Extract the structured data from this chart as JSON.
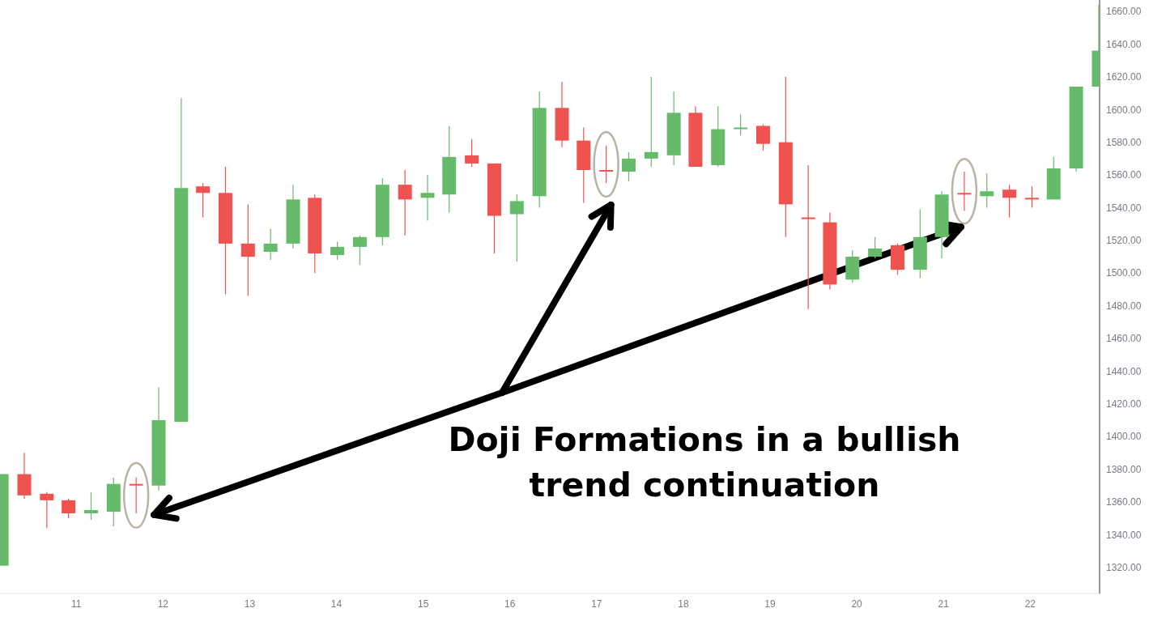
{
  "chart_data": {
    "type": "candlestick",
    "annotations": [
      "Doji Formations in a bullish trend continuation"
    ],
    "x": [
      10.14,
      10.4,
      10.66,
      10.91,
      11.17,
      11.43,
      11.69,
      11.95,
      12.21,
      12.46,
      12.72,
      12.98,
      13.24,
      13.5,
      13.75,
      14.01,
      14.27,
      14.53,
      14.79,
      15.05,
      15.3,
      15.56,
      15.82,
      16.08,
      16.34,
      16.6,
      16.85,
      17.11,
      17.37,
      17.63,
      17.89,
      18.14,
      18.4,
      18.66,
      18.92,
      19.18,
      19.44,
      19.69,
      19.95,
      20.21,
      20.47,
      20.73,
      20.98,
      21.24,
      21.5,
      21.76,
      22.02,
      22.27,
      22.53,
      22.79
    ],
    "ohlc": [
      [
        1321,
        1377,
        1321,
        1377
      ],
      [
        1377,
        1390,
        1362,
        1364
      ],
      [
        1365,
        1366,
        1344,
        1361
      ],
      [
        1361,
        1362,
        1350,
        1353
      ],
      [
        1353,
        1366,
        1349,
        1355
      ],
      [
        1354,
        1375,
        1345,
        1371
      ],
      [
        1371,
        1375,
        1353,
        1370
      ],
      [
        1370,
        1430,
        1367,
        1410
      ],
      [
        1409,
        1607,
        1409,
        1552
      ],
      [
        1553,
        1555,
        1534,
        1549
      ],
      [
        1549,
        1565,
        1487,
        1518
      ],
      [
        1518,
        1542,
        1486,
        1510
      ],
      [
        1513,
        1527,
        1508,
        1518
      ],
      [
        1518,
        1554,
        1515,
        1545
      ],
      [
        1546,
        1548,
        1500,
        1512
      ],
      [
        1511,
        1519,
        1508,
        1516
      ],
      [
        1516,
        1523,
        1505,
        1522
      ],
      [
        1522,
        1558,
        1517,
        1554
      ],
      [
        1554,
        1563,
        1523,
        1545
      ],
      [
        1546,
        1560,
        1532,
        1549
      ],
      [
        1548,
        1590,
        1537,
        1571
      ],
      [
        1572,
        1582,
        1565,
        1567
      ],
      [
        1567,
        1567,
        1512,
        1535
      ],
      [
        1536,
        1548,
        1507,
        1544
      ],
      [
        1547,
        1611,
        1540,
        1601
      ],
      [
        1601,
        1617,
        1577,
        1581
      ],
      [
        1581,
        1589,
        1543,
        1563
      ],
      [
        1563,
        1578,
        1555,
        1562
      ],
      [
        1562,
        1574,
        1556,
        1570
      ],
      [
        1570,
        1620,
        1565,
        1574
      ],
      [
        1572,
        1611,
        1566,
        1598
      ],
      [
        1598,
        1602,
        1565,
        1565
      ],
      [
        1566,
        1602,
        1565,
        1588
      ],
      [
        1588,
        1597,
        1584,
        1589
      ],
      [
        1590,
        1591,
        1575,
        1579
      ],
      [
        1580,
        1620,
        1522,
        1542
      ],
      [
        1534,
        1566,
        1478,
        1533
      ],
      [
        1531,
        1537,
        1490,
        1493
      ],
      [
        1496,
        1514,
        1494,
        1510
      ],
      [
        1510,
        1522,
        1509,
        1515
      ],
      [
        1517,
        1518,
        1499,
        1502
      ],
      [
        1502,
        1539,
        1497,
        1522
      ],
      [
        1522,
        1550,
        1509,
        1548
      ],
      [
        1549,
        1562,
        1538,
        1548
      ],
      [
        1547,
        1561,
        1540,
        1550
      ],
      [
        1551,
        1554,
        1534,
        1546
      ],
      [
        1546,
        1553,
        1540,
        1545
      ],
      [
        1545,
        1571,
        1545,
        1564
      ],
      [
        1564,
        1614,
        1562,
        1614
      ],
      [
        1614,
        1664,
        1614,
        1636
      ]
    ],
    "colors": [
      "#66bb6a",
      "#ef5350",
      "#ef5350",
      "#ef5350",
      "#66bb6a",
      "#66bb6a",
      "#ef5350",
      "#66bb6a",
      "#66bb6a",
      "#ef5350",
      "#ef5350",
      "#ef5350",
      "#66bb6a",
      "#66bb6a",
      "#ef5350",
      "#66bb6a",
      "#66bb6a",
      "#66bb6a",
      "#ef5350",
      "#66bb6a",
      "#66bb6a",
      "#ef5350",
      "#ef5350",
      "#66bb6a",
      "#66bb6a",
      "#ef5350",
      "#ef5350",
      "#ef5350",
      "#66bb6a",
      "#66bb6a",
      "#66bb6a",
      "#ef5350",
      "#66bb6a",
      "#66bb6a",
      "#ef5350",
      "#ef5350",
      "#ef5350",
      "#ef5350",
      "#66bb6a",
      "#66bb6a",
      "#ef5350",
      "#66bb6a",
      "#66bb6a",
      "#ef5350",
      "#66bb6a",
      "#ef5350",
      "#ef5350",
      "#66bb6a",
      "#66bb6a",
      "#66bb6a"
    ],
    "xlim": [
      10.12,
      22.8
    ],
    "xticks": [
      11,
      12,
      13,
      14,
      15,
      16,
      17,
      18,
      19,
      20,
      21,
      22
    ],
    "ylim": [
      1304,
      1667
    ],
    "yticks": [
      {
        "value": 1320,
        "label": "1320.00"
      },
      {
        "value": 1340,
        "label": "1340.00"
      },
      {
        "value": 1360,
        "label": "1360.00"
      },
      {
        "value": 1380,
        "label": "1380.00"
      },
      {
        "value": 1400,
        "label": "1400.00"
      },
      {
        "value": 1420,
        "label": "1420.00"
      },
      {
        "value": 1440,
        "label": "1440.00"
      },
      {
        "value": 1460,
        "label": "1460.00"
      },
      {
        "value": 1480,
        "label": "1480.00"
      },
      {
        "value": 1500,
        "label": "1500.00"
      },
      {
        "value": 1520,
        "label": "1520.00"
      },
      {
        "value": 1540,
        "label": "1540.00"
      },
      {
        "value": 1560,
        "label": "1560.00"
      },
      {
        "value": 1580,
        "label": "1580.00"
      },
      {
        "value": 1600,
        "label": "1600.00"
      },
      {
        "value": 1620,
        "label": "1620.00"
      },
      {
        "value": 1640,
        "label": "1640.00"
      },
      {
        "value": 1660,
        "label": "1660.00"
      }
    ],
    "grid": false,
    "legend": false
  }
}
